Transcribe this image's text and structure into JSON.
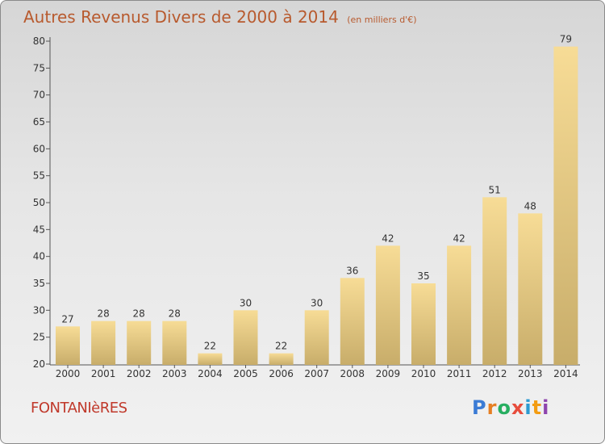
{
  "title": "Autres Revenus Divers de 2000 à 2014",
  "subtitle": "(en milliers d'€)",
  "city": "FONTANIèRES",
  "logo": {
    "letters": [
      "P",
      "r",
      "o",
      "x",
      "i",
      "t",
      "i"
    ],
    "colors": [
      "#3a7bd5",
      "#e67e22",
      "#27ae60",
      "#e74c3c",
      "#2c9ad1",
      "#f39c12",
      "#8e44ad"
    ]
  },
  "colors": {
    "bar_light": "#f7dc96",
    "bar_dark": "#c8ad6a",
    "title": "#b85a2e",
    "city": "#c0392b"
  },
  "chart_data": {
    "type": "bar",
    "categories": [
      "2000",
      "2001",
      "2002",
      "2003",
      "2004",
      "2005",
      "2006",
      "2007",
      "2008",
      "2009",
      "2010",
      "2011",
      "2012",
      "2013",
      "2014"
    ],
    "values": [
      27,
      28,
      28,
      28,
      22,
      30,
      22,
      30,
      36,
      42,
      35,
      42,
      51,
      48,
      79
    ],
    "yticks": [
      20,
      25,
      30,
      35,
      40,
      45,
      50,
      55,
      60,
      65,
      70,
      75,
      80
    ],
    "ylim": [
      20,
      80
    ],
    "grid": false,
    "xlabel": "",
    "ylabel": ""
  }
}
